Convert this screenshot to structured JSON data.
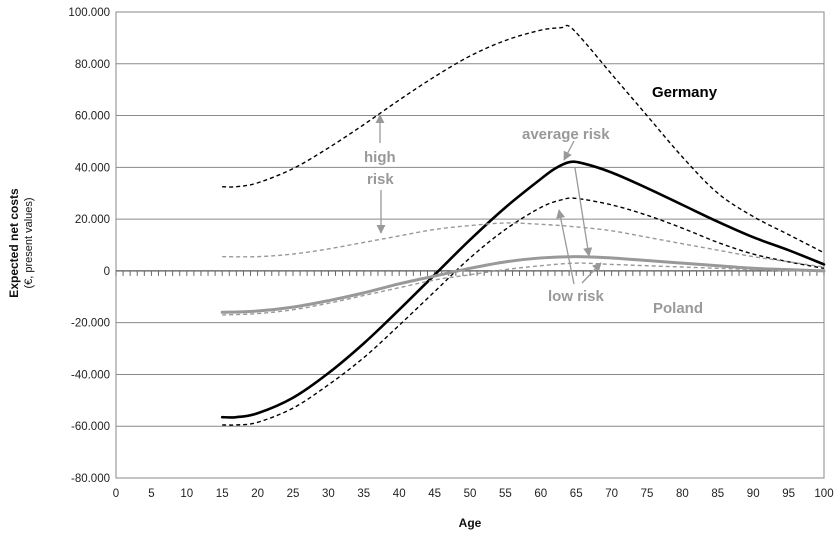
{
  "chart_data": {
    "type": "line",
    "title": "",
    "xlabel": "Age",
    "ylabel": "Expected net costs",
    "ylabel_sub": "(€, present values)",
    "xlim": [
      0,
      100
    ],
    "ylim": [
      -80000,
      100000
    ],
    "x_ticks": [
      0,
      5,
      10,
      15,
      20,
      25,
      30,
      35,
      40,
      45,
      50,
      55,
      60,
      65,
      70,
      75,
      80,
      85,
      90,
      95,
      100
    ],
    "x_tick_labels": [
      "0",
      "5",
      "10",
      "15",
      "20",
      "25",
      "30",
      "35",
      "40",
      "45",
      "50",
      "55",
      "60",
      "65",
      "70",
      "75",
      "80",
      "85",
      "90",
      "95",
      "100"
    ],
    "y_ticks": [
      -80000,
      -60000,
      -40000,
      -20000,
      0,
      20000,
      40000,
      60000,
      80000,
      100000
    ],
    "y_tick_labels": [
      "-80.000",
      "-60.000",
      "-40.000",
      "-20.000",
      "0",
      "20.000",
      "40.000",
      "60.000",
      "80.000",
      "100.000"
    ],
    "grid": "horizontal",
    "legend": "none",
    "colors": {
      "germany": "#000000",
      "poland": "#999999"
    },
    "series": [
      {
        "key": "germany_average",
        "country": "germany",
        "risk": "average",
        "style": "solid-thick",
        "x": [
          15,
          17,
          20,
          25,
          30,
          35,
          40,
          45,
          50,
          55,
          60,
          62,
          64,
          66,
          70,
          75,
          80,
          85,
          90,
          95,
          100
        ],
        "y": [
          -56500,
          -56500,
          -55000,
          -49000,
          -39500,
          -28000,
          -15000,
          -1500,
          12000,
          24500,
          35500,
          39500,
          42000,
          41500,
          38000,
          32000,
          25500,
          19000,
          13000,
          8000,
          2500
        ]
      },
      {
        "key": "germany_high",
        "country": "germany",
        "risk": "high",
        "style": "dashed",
        "x": [
          15,
          17,
          20,
          25,
          30,
          35,
          40,
          45,
          50,
          55,
          60,
          63,
          64,
          66,
          70,
          75,
          80,
          85,
          90,
          95,
          100
        ],
        "y": [
          32500,
          32500,
          34000,
          39500,
          47500,
          56500,
          66000,
          75000,
          83000,
          89000,
          93000,
          94000,
          94500,
          89000,
          76000,
          60000,
          44000,
          30000,
          21000,
          14000,
          7000
        ]
      },
      {
        "key": "germany_low",
        "country": "germany",
        "risk": "low",
        "style": "dashed",
        "x": [
          15,
          17,
          20,
          25,
          30,
          35,
          40,
          45,
          50,
          55,
          60,
          63,
          65,
          70,
          75,
          80,
          85,
          90,
          95,
          100
        ],
        "y": [
          -59500,
          -59500,
          -58500,
          -53000,
          -44000,
          -33500,
          -21000,
          -8000,
          5000,
          16000,
          24500,
          27500,
          28000,
          25500,
          21500,
          16500,
          11000,
          6500,
          3500,
          1000
        ]
      },
      {
        "key": "poland_average",
        "country": "poland",
        "risk": "average",
        "style": "solid-thick",
        "x": [
          15,
          20,
          25,
          30,
          35,
          40,
          45,
          50,
          55,
          60,
          65,
          70,
          75,
          80,
          85,
          90,
          95,
          100
        ],
        "y": [
          -16000,
          -15500,
          -14000,
          -11500,
          -8500,
          -5000,
          -2000,
          1000,
          3500,
          5000,
          5500,
          5000,
          4000,
          3000,
          2000,
          1000,
          500,
          0
        ]
      },
      {
        "key": "poland_high",
        "country": "poland",
        "risk": "high",
        "style": "dashed",
        "x": [
          15,
          20,
          25,
          30,
          35,
          40,
          45,
          50,
          55,
          60,
          65,
          70,
          75,
          80,
          85,
          90,
          95,
          100
        ],
        "y": [
          5500,
          5500,
          6500,
          8500,
          11000,
          13500,
          16000,
          17500,
          18500,
          18000,
          17000,
          15500,
          13000,
          10500,
          8000,
          5500,
          3500,
          1500
        ]
      },
      {
        "key": "poland_low",
        "country": "poland",
        "risk": "low",
        "style": "dashed",
        "x": [
          15,
          20,
          25,
          30,
          35,
          40,
          45,
          50,
          55,
          60,
          65,
          70,
          75,
          80,
          85,
          90,
          95,
          100
        ],
        "y": [
          -17000,
          -16500,
          -15000,
          -12500,
          -9500,
          -6500,
          -3500,
          -1500,
          500,
          2000,
          3000,
          2500,
          2000,
          1500,
          1000,
          500,
          0,
          0
        ]
      }
    ],
    "annotations": [
      {
        "key": "germany",
        "text": "Germany",
        "color": "#000000"
      },
      {
        "key": "poland",
        "text": "Poland",
        "color": "#999999"
      },
      {
        "key": "average_risk",
        "text": "average risk",
        "color": "#999999"
      },
      {
        "key": "high_risk_line1",
        "text": "high",
        "color": "#999999"
      },
      {
        "key": "high_risk_line2",
        "text": "risk",
        "color": "#999999"
      },
      {
        "key": "low_risk",
        "text": "low risk",
        "color": "#999999"
      }
    ]
  }
}
